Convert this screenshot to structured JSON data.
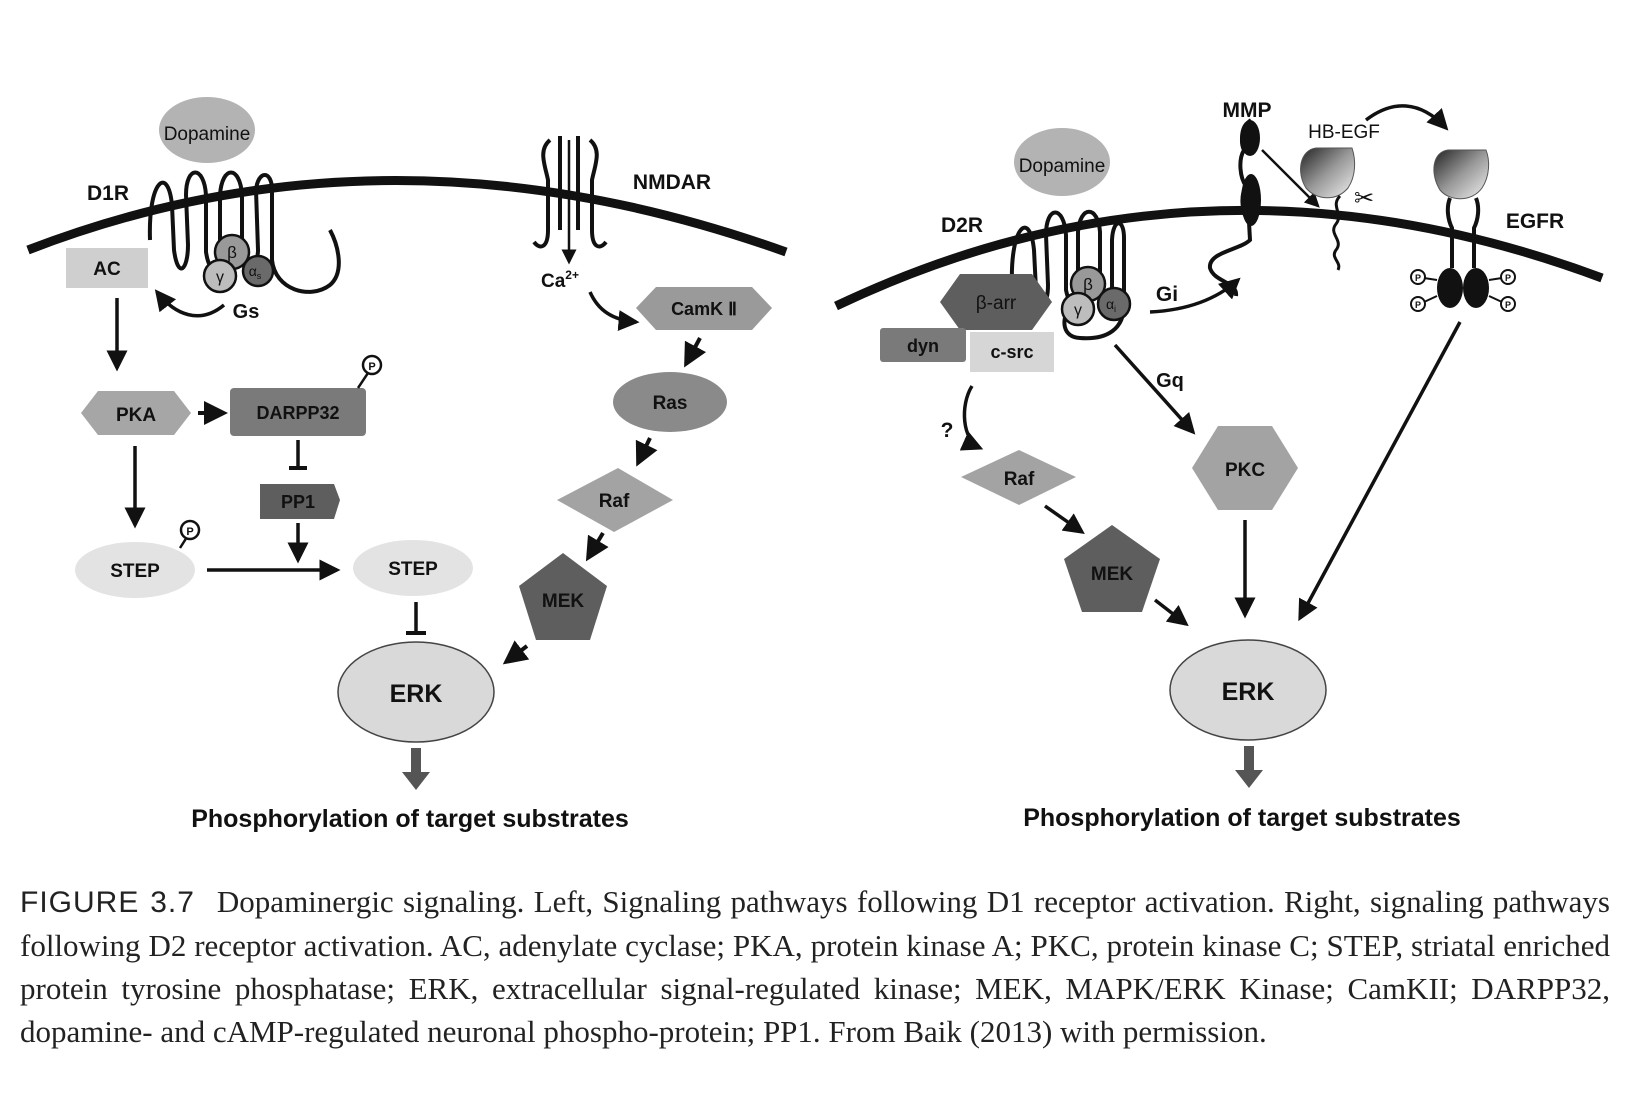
{
  "left_panel": {
    "dopamine": "Dopamine",
    "receptor": "D1R",
    "ac": "AC",
    "subunit_beta": "β",
    "subunit_gamma": "γ",
    "subunit_alpha": "α",
    "subunit_alpha_sub": "s",
    "gs": "Gs",
    "nmdar": "NMDAR",
    "calcium": "Ca",
    "calcium_sup": "2+",
    "camk": "CamK Ⅱ",
    "ras": "Ras",
    "raf": "Raf",
    "mek": "MEK",
    "pka": "PKA",
    "darpp32": "DARPP32",
    "pp1": "PP1",
    "step_p": "STEP",
    "step": "STEP",
    "erk": "ERK",
    "phospho_p": "P",
    "output": "Phosphorylation of target substrates"
  },
  "right_panel": {
    "dopamine": "Dopamine",
    "receptor": "D2R",
    "mmp": "MMP",
    "hbegf": "HB-EGF",
    "egfr": "EGFR",
    "beta_arr": "β-arr",
    "dyn": "dyn",
    "csrc": "c-src",
    "subunit_beta": "β",
    "subunit_gamma": "γ",
    "subunit_alpha": "α",
    "subunit_alpha_sub": "i",
    "gi": "Gi",
    "gq": "Gq",
    "question": "?",
    "raf": "Raf",
    "mek": "MEK",
    "pkc": "PKC",
    "erk": "ERK",
    "phospho_p": "P",
    "output": "Phosphorylation of target substrates"
  },
  "caption": {
    "figure_label": "FIGURE 3.7",
    "text": "Dopaminergic signaling. Left, Signaling pathways following D1 receptor activation. Right, signaling pathways following D2 receptor activation. AC, adenylate cyclase; PKA, protein kinase A; PKC, protein kinase C; STEP, striatal enriched protein tyrosine phosphatase; ERK, extracellular signal-regulated kinase; MEK, MAPK/ERK Kinase; CamKII; DARPP32, dopamine- and cAMP-regulated neuronal phospho-protein; PP1. From Baik (2013) with permission."
  }
}
